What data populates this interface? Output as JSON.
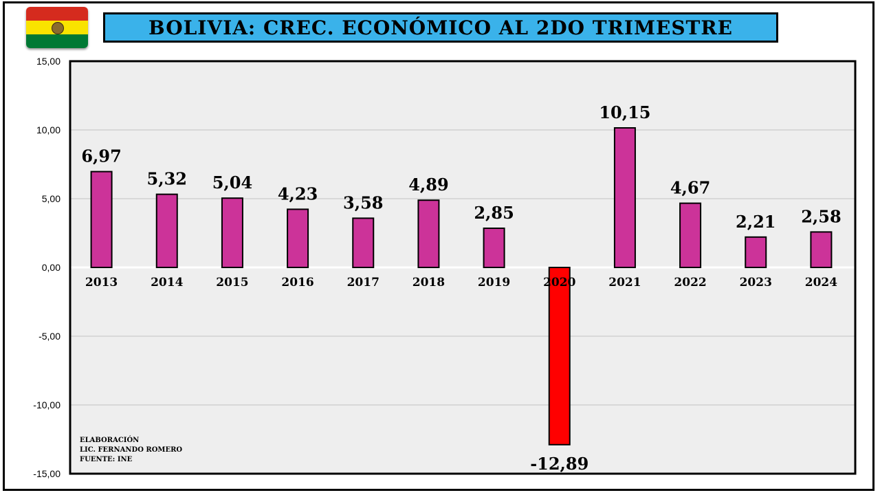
{
  "title": "BOLIVIA: CREC. ECONÓMICO AL 2DO TRIMESTRE",
  "flag_colors": [
    "#d52b1e",
    "#f9e300",
    "#007934"
  ],
  "credits": {
    "line1": "ELABORACIÓN",
    "line2": "LIC. FERNANDO ROMERO",
    "line3": "FUENTE: INE"
  },
  "chart_data": {
    "type": "bar",
    "categories": [
      "2013",
      "2014",
      "2015",
      "2016",
      "2017",
      "2018",
      "2019",
      "2020",
      "2021",
      "2022",
      "2023",
      "2024"
    ],
    "values": [
      6.97,
      5.32,
      5.04,
      4.23,
      3.58,
      4.89,
      2.85,
      -12.89,
      10.15,
      4.67,
      2.21,
      2.58
    ],
    "value_labels": [
      "6,97",
      "5,32",
      "5,04",
      "4,23",
      "3,58",
      "4,89",
      "2,85",
      "-12,89",
      "10,15",
      "4,67",
      "2,21",
      "2,58"
    ],
    "y_ticks": [
      15,
      10,
      5,
      0,
      -5,
      -10,
      -15
    ],
    "y_tick_labels": [
      "15,00",
      "10,00",
      "5,00",
      "0,00",
      "-5,00",
      "-10,00",
      "-15,00"
    ],
    "ylim": [
      -15,
      15
    ],
    "grid": true,
    "colors": {
      "positive": "#cc3399",
      "negative": "#ff0000",
      "bar_outline": "#000000",
      "plot_bg": "#eeeeee",
      "grid": "#cccccc"
    }
  }
}
